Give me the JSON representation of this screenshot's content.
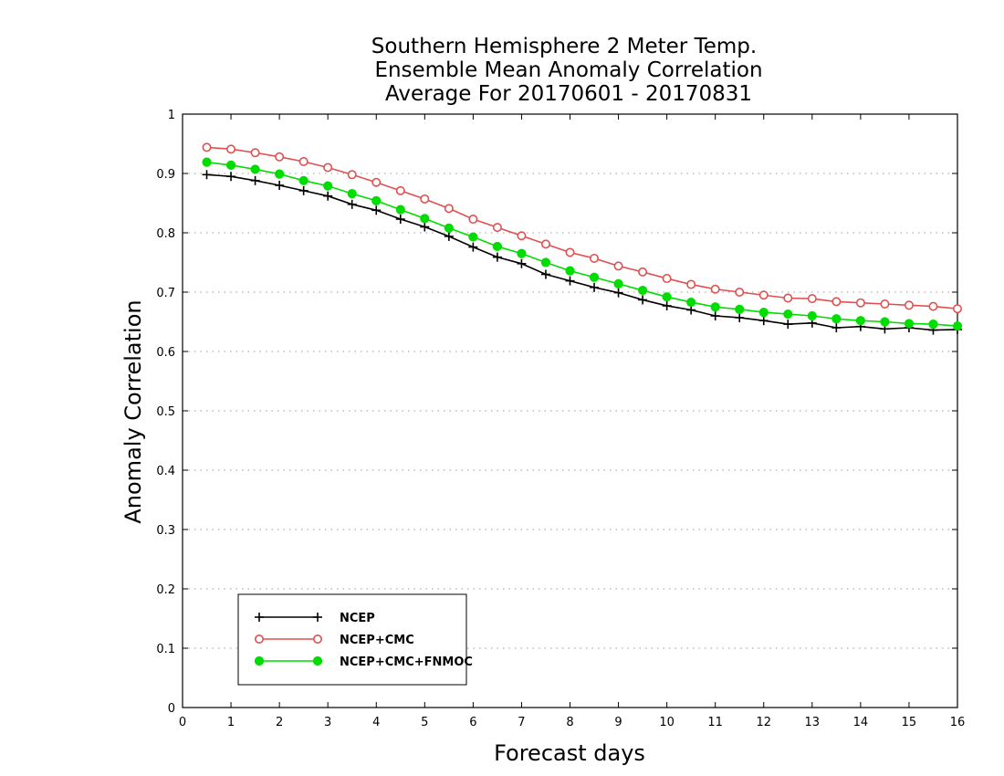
{
  "chart_data": {
    "type": "line",
    "title": [
      "Southern Hemisphere 2 Meter Temp.",
      "Ensemble Mean Anomaly Correlation",
      "Average For 20170601 - 20170831"
    ],
    "xlabel": "Forecast days",
    "ylabel": "Anomaly Correlation",
    "xlim": [
      0,
      16
    ],
    "ylim": [
      0,
      1
    ],
    "x_ticks": [
      "0",
      "1",
      "2",
      "3",
      "4",
      "5",
      "6",
      "7",
      "8",
      "9",
      "10",
      "11",
      "12",
      "13",
      "14",
      "15",
      "16"
    ],
    "y_ticks": [
      "0",
      "0.1",
      "0.2",
      "0.3",
      "0.4",
      "0.5",
      "0.6",
      "0.7",
      "0.8",
      "0.9",
      "1"
    ],
    "grid": "horizontal dotted",
    "legend_position": "bottom-left",
    "x": [
      0.5,
      1,
      1.5,
      2,
      2.5,
      3,
      3.5,
      4,
      4.5,
      5,
      5.5,
      6,
      6.5,
      7,
      7.5,
      8,
      8.5,
      9,
      9.5,
      10,
      10.5,
      11,
      11.5,
      12,
      12.5,
      13,
      13.5,
      14,
      14.5,
      15,
      15.5,
      16
    ],
    "series": [
      {
        "name": "NCEP",
        "color": "#000000",
        "marker": "plus",
        "values": [
          0.898,
          0.895,
          0.888,
          0.88,
          0.871,
          0.862,
          0.848,
          0.838,
          0.823,
          0.81,
          0.794,
          0.776,
          0.759,
          0.748,
          0.73,
          0.719,
          0.708,
          0.699,
          0.687,
          0.677,
          0.67,
          0.66,
          0.657,
          0.652,
          0.646,
          0.648,
          0.64,
          0.642,
          0.638,
          0.64,
          0.636,
          0.637
        ]
      },
      {
        "name": "NCEP+CMC",
        "color": "#e05050",
        "marker": "open-circle",
        "values": [
          0.944,
          0.941,
          0.935,
          0.928,
          0.92,
          0.91,
          0.898,
          0.885,
          0.871,
          0.857,
          0.841,
          0.823,
          0.809,
          0.795,
          0.781,
          0.767,
          0.757,
          0.744,
          0.734,
          0.723,
          0.713,
          0.705,
          0.7,
          0.695,
          0.69,
          0.689,
          0.684,
          0.682,
          0.68,
          0.678,
          0.676,
          0.672
        ]
      },
      {
        "name": "NCEP+CMC+FNMOC",
        "color": "#00dd00",
        "marker": "filled-circle",
        "values": [
          0.919,
          0.914,
          0.907,
          0.899,
          0.888,
          0.879,
          0.866,
          0.854,
          0.839,
          0.824,
          0.808,
          0.793,
          0.777,
          0.765,
          0.75,
          0.736,
          0.725,
          0.714,
          0.703,
          0.692,
          0.683,
          0.675,
          0.671,
          0.666,
          0.663,
          0.66,
          0.655,
          0.652,
          0.65,
          0.647,
          0.646,
          0.643
        ]
      }
    ]
  }
}
